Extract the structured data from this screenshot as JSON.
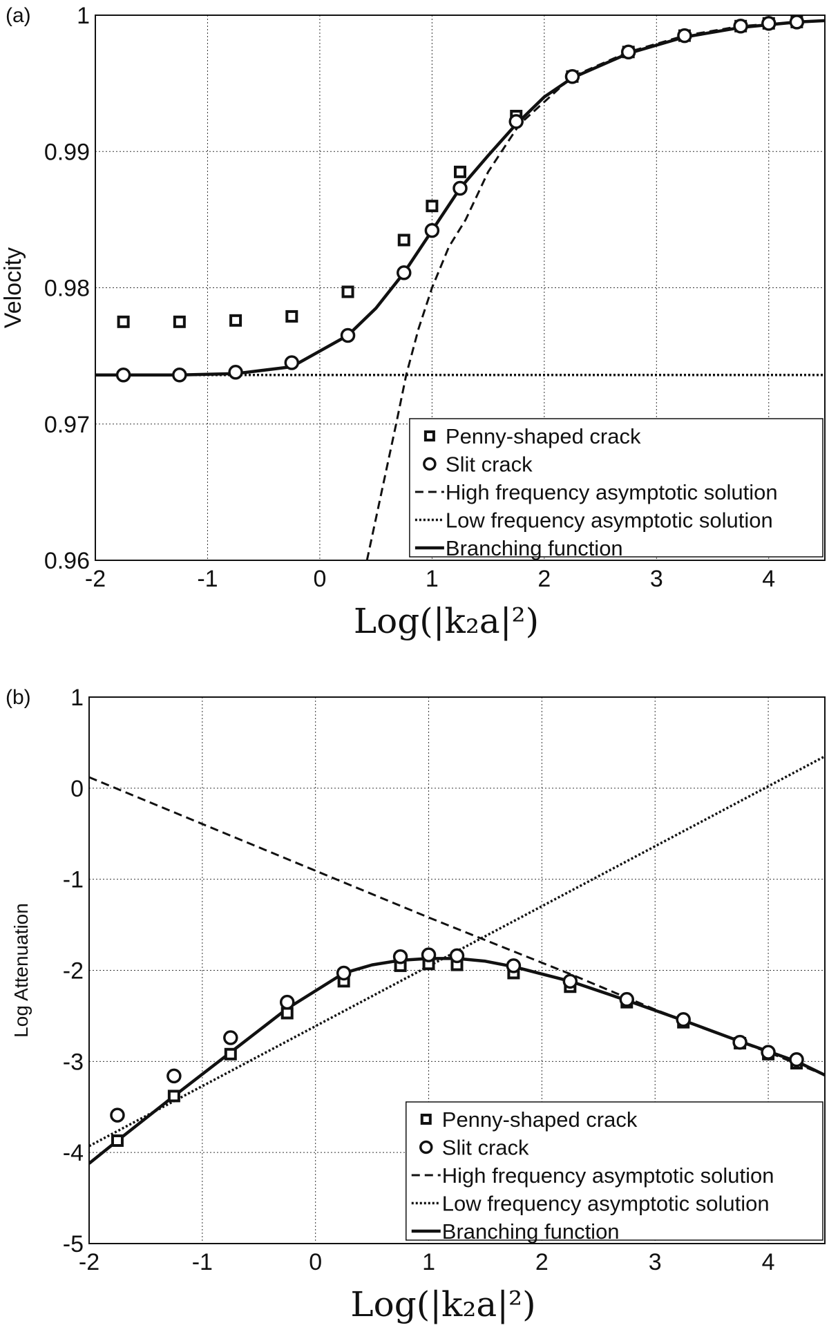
{
  "chart_data": [
    {
      "type": "line",
      "panel_label": "(a)",
      "xlabel": "Log(|k₂a|²)",
      "ylabel": "Velocity",
      "xlim": [
        -2,
        4.5
      ],
      "ylim": [
        0.96,
        1.0
      ],
      "xticks": [
        "-2",
        "-1",
        "0",
        "1",
        "2",
        "3",
        "4"
      ],
      "yticks": [
        "0.96",
        "0.97",
        "0.98",
        "0.99",
        "1"
      ],
      "grid": true,
      "legend_position": "bottom-right",
      "x": [
        -1.75,
        -1.25,
        -0.75,
        -0.25,
        0.25,
        0.75,
        1,
        1.25,
        1.75,
        2.25,
        2.75,
        3.25,
        3.75,
        4,
        4.25
      ],
      "series": [
        {
          "name": "Penny-shaped crack",
          "style": "square-marker",
          "values": [
            0.9775,
            0.9775,
            0.9776,
            0.9779,
            0.9797,
            0.9835,
            0.986,
            0.9885,
            0.9926,
            0.9955,
            0.9973,
            0.9985,
            0.9992,
            0.9994,
            0.9995
          ]
        },
        {
          "name": "Slit crack",
          "style": "circle-marker",
          "values": [
            0.9736,
            0.9736,
            0.9738,
            0.9745,
            0.9765,
            0.9811,
            0.9842,
            0.9873,
            0.9922,
            0.9955,
            0.9973,
            0.9985,
            0.9992,
            0.9994,
            0.9995
          ]
        },
        {
          "name": "High frequency asymptotic solution",
          "style": "dashed",
          "points": [
            [
              0.42,
              0.96
            ],
            [
              0.55,
              0.965
            ],
            [
              0.68,
              0.97
            ],
            [
              0.77,
              0.9736
            ],
            [
              0.88,
              0.977
            ],
            [
              1.0,
              0.98
            ],
            [
              1.15,
              0.983
            ],
            [
              1.3,
              0.985
            ],
            [
              1.5,
              0.9885
            ],
            [
              1.78,
              0.992
            ],
            [
              2.25,
              0.9955
            ],
            [
              2.75,
              0.9973
            ],
            [
              3.25,
              0.9985
            ],
            [
              3.75,
              0.9992
            ],
            [
              4.25,
              0.9995
            ],
            [
              4.5,
              0.9996
            ]
          ]
        },
        {
          "name": "Low frequency asymptotic solution",
          "style": "dotted",
          "points": [
            [
              -2,
              0.9736
            ],
            [
              4.5,
              0.9736
            ]
          ]
        },
        {
          "name": "Branching function",
          "style": "solid",
          "points": [
            [
              -2,
              0.9736
            ],
            [
              -1.25,
              0.9736
            ],
            [
              -0.75,
              0.9737
            ],
            [
              -0.25,
              0.9742
            ],
            [
              0.25,
              0.9765
            ],
            [
              0.5,
              0.9785
            ],
            [
              0.75,
              0.9811
            ],
            [
              1.0,
              0.9842
            ],
            [
              1.25,
              0.9873
            ],
            [
              1.5,
              0.9897
            ],
            [
              1.75,
              0.992
            ],
            [
              2.0,
              0.994
            ],
            [
              2.25,
              0.9954
            ],
            [
              2.75,
              0.9972
            ],
            [
              3.25,
              0.9984
            ],
            [
              3.75,
              0.9991
            ],
            [
              4.25,
              0.9995
            ],
            [
              4.5,
              0.9996
            ]
          ]
        }
      ]
    },
    {
      "type": "line",
      "panel_label": "(b)",
      "xlabel": "Log(|k₂a|²)",
      "ylabel": "Log Attenuation",
      "xlim": [
        -2,
        4.5
      ],
      "ylim": [
        -5,
        1
      ],
      "xticks": [
        "-2",
        "-1",
        "0",
        "1",
        "2",
        "3",
        "4"
      ],
      "yticks": [
        "-5",
        "-4",
        "-3",
        "-2",
        "-1",
        "0",
        "1"
      ],
      "grid": true,
      "legend_position": "bottom-right",
      "x": [
        -1.75,
        -1.25,
        -0.75,
        -0.25,
        0.25,
        0.75,
        1,
        1.25,
        1.75,
        2.25,
        2.75,
        3.25,
        3.75,
        4,
        4.25
      ],
      "series": [
        {
          "name": "Penny-shaped crack",
          "style": "square-marker",
          "values": [
            -3.87,
            -3.38,
            -2.92,
            -2.47,
            -2.12,
            -1.95,
            -1.93,
            -1.94,
            -2.03,
            -2.18,
            -2.35,
            -2.57,
            -2.8,
            -2.92,
            -3.02
          ]
        },
        {
          "name": "Slit crack",
          "style": "circle-marker",
          "values": [
            -3.59,
            -3.16,
            -2.74,
            -2.35,
            -2.03,
            -1.85,
            -1.83,
            -1.84,
            -1.95,
            -2.12,
            -2.32,
            -2.54,
            -2.79,
            -2.9,
            -2.98
          ]
        },
        {
          "name": "High frequency asymptotic solution",
          "style": "dashed",
          "points": [
            [
              -2,
              0.12
            ],
            [
              1,
              -1.42
            ],
            [
              2.25,
              -2.04
            ],
            [
              3.0,
              -2.43
            ],
            [
              3.5,
              -2.67
            ],
            [
              4.0,
              -2.9
            ],
            [
              4.5,
              -3.15
            ]
          ]
        },
        {
          "name": "Low frequency asymptotic solution",
          "style": "dotted",
          "points": [
            [
              -2,
              -3.93
            ],
            [
              4.5,
              0.35
            ]
          ]
        },
        {
          "name": "Branching function",
          "style": "solid",
          "points": [
            [
              -2,
              -4.12
            ],
            [
              -1.75,
              -3.87
            ],
            [
              -1.25,
              -3.38
            ],
            [
              -0.75,
              -2.9
            ],
            [
              -0.25,
              -2.42
            ],
            [
              0.25,
              -2.03
            ],
            [
              0.5,
              -1.94
            ],
            [
              0.75,
              -1.89
            ],
            [
              1.0,
              -1.87
            ],
            [
              1.25,
              -1.87
            ],
            [
              1.5,
              -1.9
            ],
            [
              1.75,
              -1.96
            ],
            [
              2.25,
              -2.12
            ],
            [
              2.75,
              -2.33
            ],
            [
              3.25,
              -2.55
            ],
            [
              3.75,
              -2.78
            ],
            [
              4.25,
              -3.0
            ],
            [
              4.5,
              -3.15
            ]
          ]
        }
      ]
    }
  ]
}
